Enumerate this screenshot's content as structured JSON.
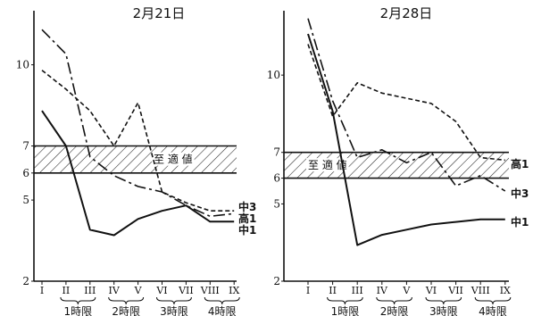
{
  "chart_data": [
    {
      "type": "line",
      "title": "2月21日",
      "x": [
        "I",
        "II",
        "III",
        "IV",
        "V",
        "VI",
        "VII",
        "VIII",
        "IX"
      ],
      "periods": [
        "1時限",
        "2時限",
        "3時限",
        "4時限"
      ],
      "y_ticks": [
        2,
        5,
        6,
        7,
        10
      ],
      "ylim": [
        2,
        12
      ],
      "band": {
        "label": "至 適 値",
        "range": [
          6,
          7
        ],
        "hatched": true
      },
      "series": [
        {
          "name": "中3",
          "style": "long-dash",
          "values": [
            11.3,
            10.4,
            6.6,
            5.9,
            5.5,
            5.3,
            4.8,
            4.4,
            4.5
          ]
        },
        {
          "name": "高1",
          "style": "short-dash",
          "values": [
            9.8,
            9.1,
            8.3,
            7.0,
            8.6,
            5.3,
            4.9,
            4.6,
            4.6
          ]
        },
        {
          "name": "中1",
          "style": "solid",
          "values": [
            8.3,
            7.0,
            3.9,
            3.7,
            4.3,
            4.6,
            4.8,
            4.2,
            4.2
          ]
        }
      ]
    },
    {
      "type": "line",
      "title": "2月28日",
      "x": [
        "I",
        "II",
        "III",
        "IV",
        "V",
        "VI",
        "VII",
        "VIII",
        "IX"
      ],
      "periods": [
        "1時限",
        "2時限",
        "3時限",
        "4時限"
      ],
      "y_ticks": [
        2,
        5,
        6,
        7,
        10
      ],
      "ylim": [
        2,
        12.5
      ],
      "band": {
        "label": "至 適 値",
        "range": [
          6,
          7
        ],
        "hatched": true
      },
      "series": [
        {
          "name": "高1",
          "style": "short-dash",
          "values": [
            11.2,
            8.4,
            9.7,
            9.3,
            9.1,
            8.9,
            8.2,
            6.8,
            6.7
          ]
        },
        {
          "name": "中3",
          "style": "long-dash",
          "values": [
            12.2,
            9.0,
            6.8,
            7.1,
            6.6,
            7.0,
            5.7,
            6.1,
            5.5
          ]
        },
        {
          "name": "中1",
          "style": "solid",
          "values": [
            11.6,
            8.6,
            3.4,
            3.8,
            4.0,
            4.2,
            4.3,
            4.4,
            4.4
          ]
        }
      ]
    }
  ]
}
